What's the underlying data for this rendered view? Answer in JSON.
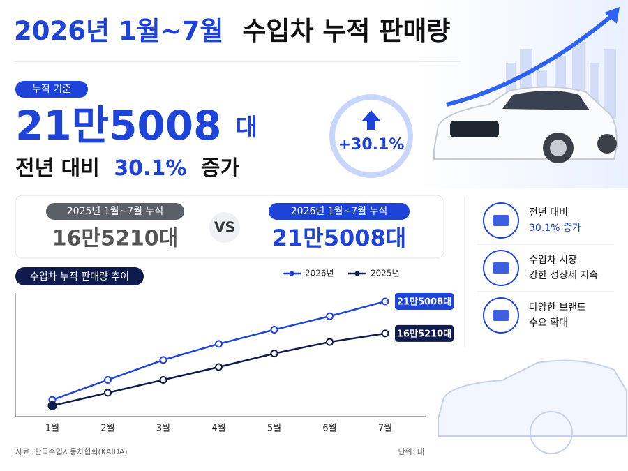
{
  "header": {
    "title_highlight": "2026년 1월~7월",
    "title_rest": "수입차 누적 판매량"
  },
  "summary": {
    "badge": "누적 기준",
    "total_number": "21만5008",
    "total_unit": "대",
    "yoy_prefix": "전년 대비",
    "yoy_value": "30.1%",
    "yoy_suffix": "증가",
    "circle_label": "+30.1%"
  },
  "compare": {
    "left_label": "2025년 1월~7월 누적",
    "left_value": "16만5210대",
    "vs": "VS",
    "right_label": "2026년 1월~7월 누적",
    "right_value": "21만5008대"
  },
  "side": [
    {
      "line1": "전년 대비",
      "line2": "30.1% 증가"
    },
    {
      "line1": "수입차 시장",
      "line2": "강한 성장세 지속"
    },
    {
      "line1": "다양한 브랜드",
      "line2": "수요 확대"
    }
  ],
  "chart_data": {
    "type": "line",
    "title": "수입차 누적 판매량 추이",
    "categories": [
      "1월",
      "2월",
      "3월",
      "4월",
      "5월",
      "6월",
      "7월"
    ],
    "series": [
      {
        "name": "2026년",
        "color": "#1d43d8",
        "values": [
          62000,
          93000,
          124000,
          149000,
          171000,
          192000,
          215008
        ],
        "value_labels": [
          null,
          null,
          null,
          null,
          null,
          null,
          "21만5008대"
        ]
      },
      {
        "name": "2025년",
        "color": "#0f1b4d",
        "values": [
          53000,
          73000,
          93000,
          113000,
          134000,
          152000,
          165210
        ],
        "value_labels": [
          null,
          null,
          null,
          null,
          null,
          null,
          "16만5210대"
        ]
      }
    ],
    "ylim": [
      36000,
      228000
    ]
  },
  "footer": {
    "source": "자료: 한국수입자동차협회(KAIDA)",
    "unit": "단위: 대"
  }
}
